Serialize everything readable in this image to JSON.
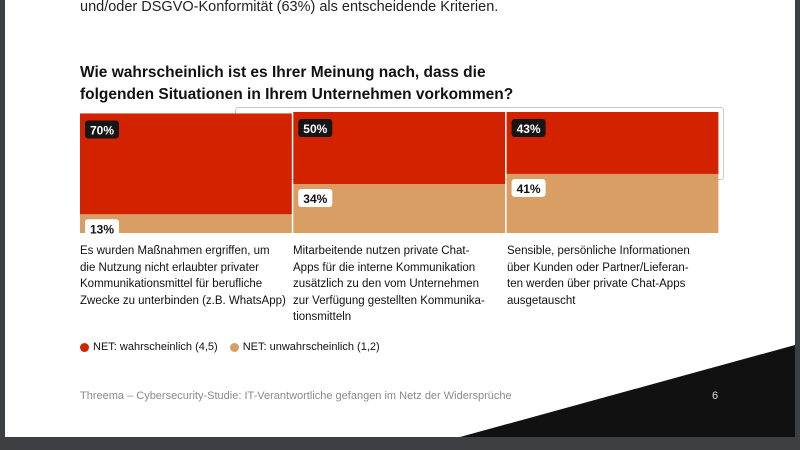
{
  "intro_text": "und/oder DSGVO-Konformität (63%) als entscheidende Kriterien.",
  "chart_data": {
    "type": "bar",
    "stacked": true,
    "title": "Wie wahrscheinlich ist es Ihrer Meinung nach, dass die folgenden Situationen in Ihrem Unternehmen vorkommen?",
    "categories": [
      "Es wurden Maßnahmen ergriffen, um\ndie Nutzung nicht erlaubter privater\nKommunikationsmittel für berufliche\nZwecke zu unterbinden (z.B. WhatsApp)",
      "Mitarbeitende nutzen private Chat-\nApps für die interne Kommunikation\nzusätzlich zu den vom Unternehmen\nzur Verfügung gestellten Kommunika-\ntionsmitteln",
      "Sensible, persönliche Informationen\nüber Kunden oder Partner/Lieferan-\nten werden über private Chat-Apps\nausgetauscht"
    ],
    "series": [
      {
        "name": "NET: wahrscheinlich (4,5)",
        "values": [
          70,
          50,
          43
        ],
        "labels": [
          "70%",
          "50%",
          "43%"
        ],
        "color": "#d22200"
      },
      {
        "name": "NET: unwahrscheinlich (1,2)",
        "values": [
          13,
          34,
          41
        ],
        "labels": [
          "13%",
          "34%",
          "41%"
        ],
        "color": "#d99e63"
      }
    ],
    "legend": "bottom-left",
    "grid": false
  },
  "footer": "Threema – Cybersecurity-Studie: IT-Verantwortliche gefangen im Netz der Widersprüche",
  "page_number": "6"
}
